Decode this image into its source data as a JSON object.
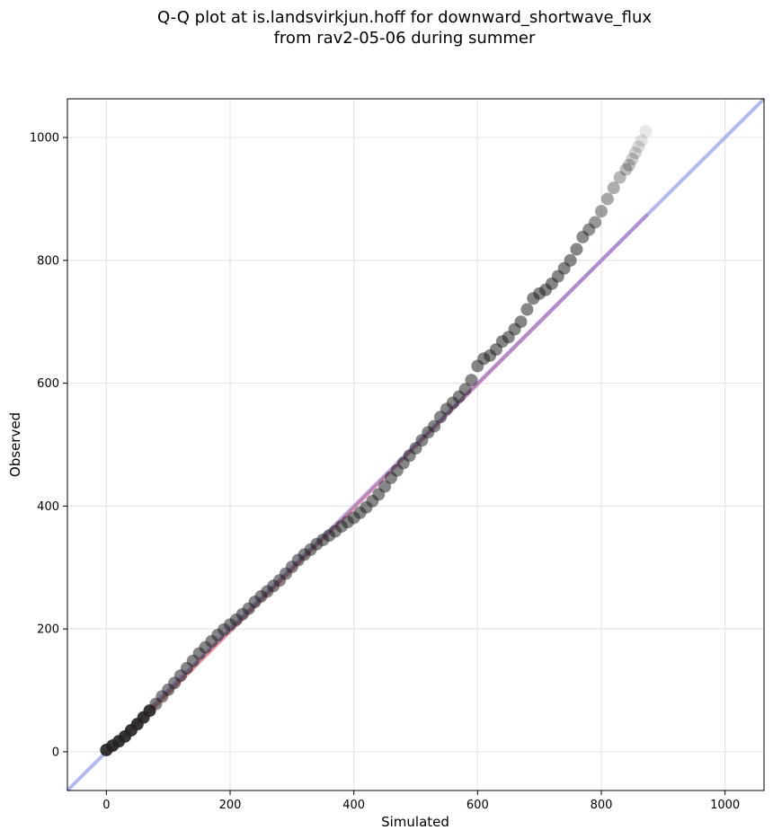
{
  "chart_data": {
    "type": "scatter",
    "title_line1": "Q-Q plot at is.landsvirkjun.hoff for downward_shortwave_flux",
    "title_line2": "from rav2-05-06 during summer",
    "xlabel": "Simulated",
    "ylabel": "Observed",
    "xlim": [
      -63,
      1063
    ],
    "ylim": [
      -63,
      1063
    ],
    "xticks": [
      0,
      200,
      400,
      600,
      800,
      1000
    ],
    "yticks": [
      0,
      200,
      400,
      600,
      800,
      1000
    ],
    "grid": true,
    "colors": {
      "points": "#222222",
      "identity_line": "#aab0f5",
      "fit_line_low": "#e05050",
      "fit_line_high": "#b070d0",
      "grid": "#e6e6e6"
    },
    "identity_line": {
      "x": [
        -63,
        1063
      ],
      "y": [
        -63,
        1063
      ]
    },
    "fit_line": {
      "x": [
        0,
        875
      ],
      "y": [
        -5,
        875
      ]
    },
    "quantiles": {
      "x": [
        0,
        10,
        20,
        30,
        40,
        50,
        60,
        70,
        80,
        90,
        100,
        110,
        120,
        130,
        140,
        150,
        160,
        170,
        180,
        190,
        200,
        210,
        220,
        230,
        240,
        250,
        260,
        270,
        280,
        290,
        300,
        310,
        320,
        330,
        340,
        350,
        360,
        370,
        380,
        390,
        400,
        410,
        420,
        430,
        440,
        450,
        460,
        470,
        480,
        490,
        500,
        510,
        520,
        530,
        540,
        550,
        560,
        570,
        580,
        590,
        600,
        610,
        620,
        630,
        640,
        650,
        660,
        670,
        680,
        690,
        700,
        710,
        720,
        730,
        740,
        750,
        760,
        770,
        780,
        790,
        800,
        810,
        820,
        830,
        840,
        845,
        850,
        855,
        860,
        865,
        872
      ],
      "y": [
        3,
        10,
        17,
        25,
        35,
        45,
        56,
        67,
        78,
        90,
        101,
        112,
        124,
        136,
        148,
        160,
        170,
        180,
        190,
        199,
        207,
        215,
        224,
        233,
        244,
        253,
        261,
        270,
        279,
        290,
        301,
        312,
        321,
        329,
        338,
        345,
        352,
        359,
        367,
        374,
        381,
        389,
        398,
        408,
        419,
        432,
        446,
        458,
        470,
        482,
        494,
        507,
        520,
        530,
        545,
        558,
        568,
        578,
        590,
        605,
        628,
        640,
        645,
        655,
        668,
        675,
        688,
        700,
        720,
        738,
        746,
        752,
        762,
        774,
        787,
        800,
        818,
        838,
        850,
        862,
        880,
        900,
        918,
        935,
        948,
        955,
        965,
        975,
        985,
        995,
        1010
      ]
    }
  }
}
